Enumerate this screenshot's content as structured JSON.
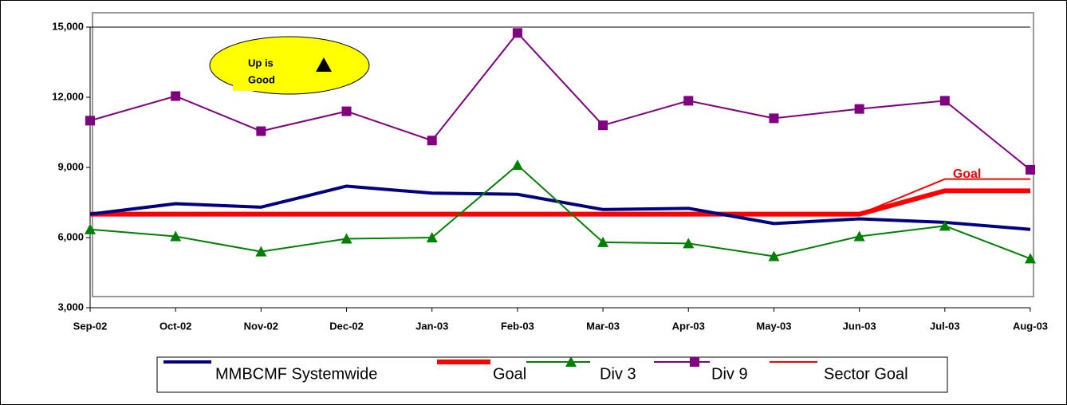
{
  "chart_data": {
    "type": "line",
    "categories": [
      "Sep-02",
      "Oct-02",
      "Nov-02",
      "Dec-02",
      "Jan-03",
      "Feb-03",
      "Mar-03",
      "Apr-03",
      "May-03",
      "Jun-03",
      "Jul-03",
      "Aug-03"
    ],
    "ylim": [
      3000,
      15000
    ],
    "yticks": [
      {
        "value": 3000,
        "label": "3,000"
      },
      {
        "value": 6000,
        "label": "6,000"
      },
      {
        "value": 9000,
        "label": "9,000"
      },
      {
        "value": 12000,
        "label": "12,000"
      },
      {
        "value": 15000,
        "label": "15,000"
      }
    ],
    "series": [
      {
        "name": "MMBCMF Systemwide",
        "color": "#000080",
        "values": [
          7000,
          7450,
          7300,
          8200,
          7900,
          7850,
          7200,
          7250,
          6600,
          6800,
          6650,
          6350
        ]
      },
      {
        "name": "Goal",
        "color": "#ff0000",
        "values": [
          7000,
          7000,
          7000,
          7000,
          7000,
          7000,
          7000,
          7000,
          7000,
          7000,
          8000,
          8000
        ]
      },
      {
        "name": "Div 3",
        "color": "#008000",
        "marker": "triangle",
        "values": [
          6350,
          6050,
          5400,
          5950,
          6000,
          9100,
          5800,
          5750,
          5200,
          6050,
          6500,
          5100
        ]
      },
      {
        "name": "Div 9",
        "color": "#800080",
        "marker": "square",
        "values": [
          11000,
          12050,
          10550,
          11400,
          10150,
          14750,
          10800,
          11850,
          11100,
          11500,
          11850,
          8900
        ]
      },
      {
        "name": "Sector Goal",
        "color": "#ff0000",
        "values": [
          7000,
          7000,
          7000,
          7000,
          7000,
          7000,
          7000,
          7000,
          7000,
          7000,
          8500,
          8500
        ]
      }
    ],
    "annotations": {
      "callout": [
        "Up is",
        "Good"
      ],
      "goal_label": "Goal"
    }
  }
}
